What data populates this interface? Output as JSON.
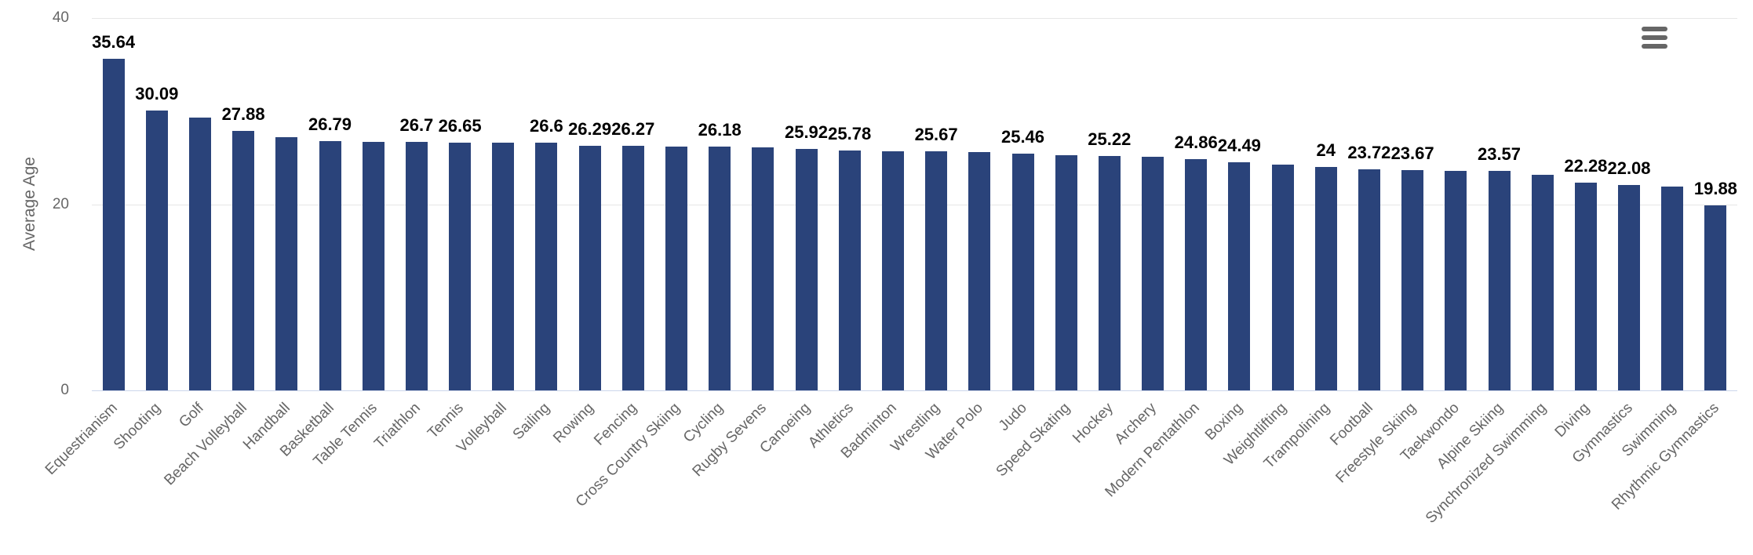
{
  "chart": {
    "ylabel": "Average Age",
    "menu_icon": "hamburger-menu-icon",
    "colors": {
      "bar": "#2a437a",
      "grid": "#e6e6e6",
      "axis_line": "#ccd6eb",
      "tick_text": "#666666",
      "data_label": "#000000"
    }
  },
  "chart_data": {
    "type": "bar",
    "title": "",
    "xlabel": "",
    "ylabel": "Average Age",
    "ylim": [
      0,
      40
    ],
    "yticks": [
      0,
      20,
      40
    ],
    "grid": "horizontal-only",
    "legend": "none",
    "x_label_rotation": -45,
    "categories": [
      "Equestrianism",
      "Shooting",
      "Golf",
      "Beach Volleyball",
      "Handball",
      "Basketball",
      "Table Tennis",
      "Triathlon",
      "Tennis",
      "Volleyball",
      "Sailing",
      "Rowing",
      "Fencing",
      "Cross Country Skiing",
      "Cycling",
      "Rugby Sevens",
      "Canoeing",
      "Athletics",
      "Badminton",
      "Wrestling",
      "Water Polo",
      "Judo",
      "Speed Skating",
      "Hockey",
      "Archery",
      "Modern Pentathlon",
      "Boxing",
      "Weightlifting",
      "Trampolining",
      "Football",
      "Freestyle Skiing",
      "Taekwondo",
      "Alpine Skiing",
      "Synchronized Swimming",
      "Diving",
      "Gymnastics",
      "Swimming",
      "Rhythmic Gymnastics"
    ],
    "values": [
      35.64,
      30.09,
      29.33,
      27.88,
      27.18,
      26.79,
      26.72,
      26.7,
      26.65,
      26.62,
      26.6,
      26.29,
      26.27,
      26.22,
      26.18,
      26.1,
      25.92,
      25.78,
      25.72,
      25.67,
      25.6,
      25.46,
      25.3,
      25.22,
      25.08,
      24.86,
      24.49,
      24.27,
      24,
      23.72,
      23.67,
      23.6,
      23.57,
      23.15,
      22.28,
      22.08,
      21.9,
      19.88
    ],
    "data_labels": [
      "35.64",
      "30.09",
      null,
      "27.88",
      null,
      "26.79",
      null,
      "26.7",
      "26.65",
      null,
      "26.6",
      "26.29",
      "26.27",
      null,
      "26.18",
      null,
      "25.92",
      "25.78",
      null,
      "25.67",
      null,
      "25.46",
      null,
      "25.22",
      null,
      "24.86",
      "24.49",
      null,
      "24",
      "23.72",
      "23.67",
      null,
      "23.57",
      null,
      "22.28",
      "22.08",
      null,
      "19.88"
    ]
  }
}
